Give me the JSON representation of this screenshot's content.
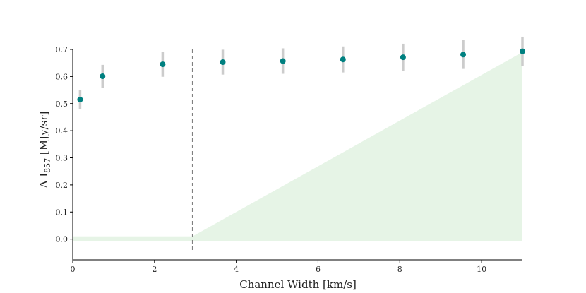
{
  "chart_data": {
    "type": "scatter",
    "title": "",
    "xlabel": "Channel Width [km/s]",
    "ylabel_prefix": "Δ I",
    "ylabel_subscript": "857",
    "ylabel_suffix": " [MJy/sr]",
    "xlim": [
      0,
      11
    ],
    "ylim": [
      -0.04,
      0.7
    ],
    "xticks": [
      0,
      2,
      4,
      6,
      8,
      10
    ],
    "yticks": [
      0.0,
      0.1,
      0.2,
      0.3,
      0.4,
      0.5,
      0.6,
      0.7
    ],
    "grid": false,
    "series": [
      {
        "color": "#008080",
        "points": [
          {
            "x": 0.18,
            "y": 0.515,
            "err": 0.035
          },
          {
            "x": 0.73,
            "y": 0.601,
            "err": 0.042
          },
          {
            "x": 2.2,
            "y": 0.645,
            "err": 0.046
          },
          {
            "x": 3.67,
            "y": 0.653,
            "err": 0.046
          },
          {
            "x": 5.14,
            "y": 0.657,
            "err": 0.047
          },
          {
            "x": 6.61,
            "y": 0.663,
            "err": 0.048
          },
          {
            "x": 8.08,
            "y": 0.671,
            "err": 0.05
          },
          {
            "x": 9.55,
            "y": 0.681,
            "err": 0.053
          },
          {
            "x": 11.0,
            "y": 0.693,
            "err": 0.054
          }
        ]
      }
    ],
    "errorbar_color": "#cccccc",
    "vline": {
      "x": 2.93,
      "color": "#808080",
      "style": "dashed"
    },
    "shaded_region": {
      "color": "#e6f4e6",
      "lower": -0.008,
      "upper": [
        {
          "x": 0,
          "y": 0.01
        },
        {
          "x": 2.93,
          "y": 0.01
        },
        {
          "x": 11.0,
          "y": 0.69
        }
      ]
    }
  }
}
